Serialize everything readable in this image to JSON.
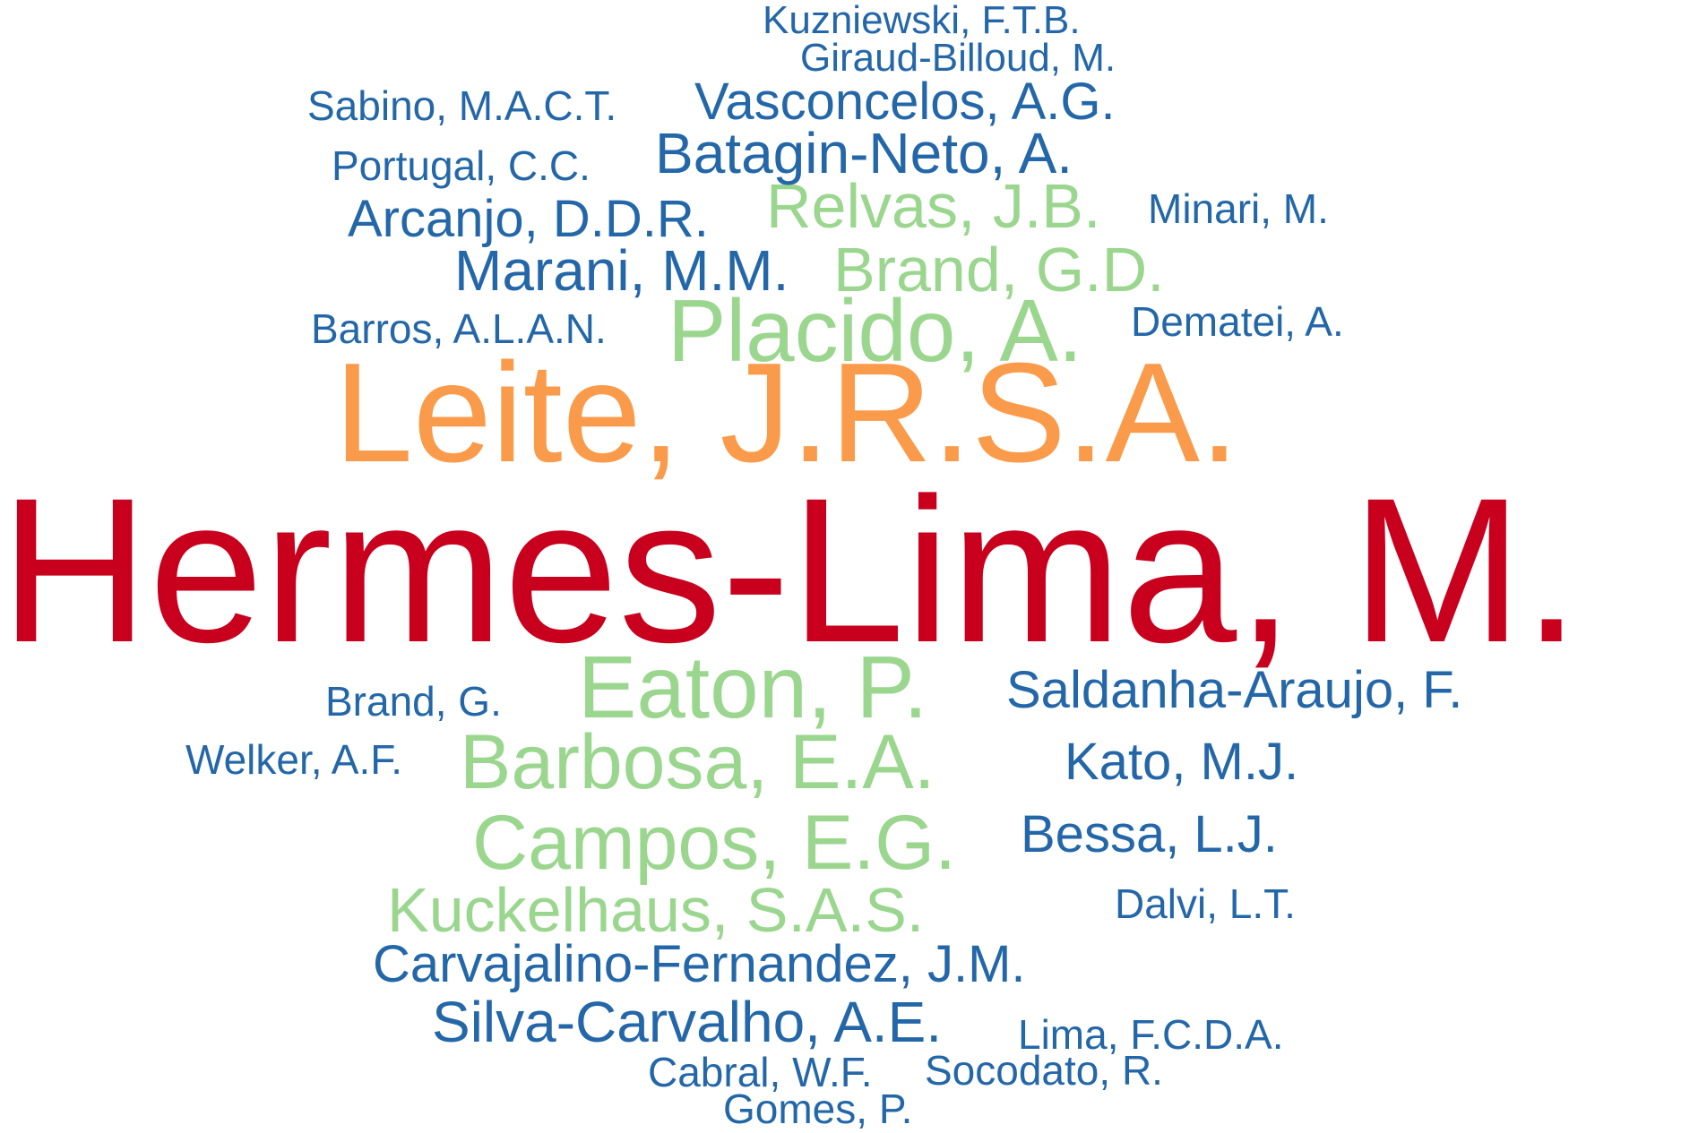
{
  "palette": {
    "tier1": "#c8001e",
    "tier2": "#fa9b4b",
    "tier3": "#9bd68f",
    "tier4": "#2467a8"
  },
  "words": [
    {
      "text": "Hermes-Lima, M.",
      "tier": "tier1"
    },
    {
      "text": "Leite, J.R.S.A.",
      "tier": "tier2"
    },
    {
      "text": "Placido, A.",
      "tier": "tier3"
    },
    {
      "text": "Eaton, P.",
      "tier": "tier3"
    },
    {
      "text": "Barbosa, E.A.",
      "tier": "tier3"
    },
    {
      "text": "Campos, E.G.",
      "tier": "tier3"
    },
    {
      "text": "Kuckelhaus, S.A.S.",
      "tier": "tier3"
    },
    {
      "text": "Relvas, J.B.",
      "tier": "tier3"
    },
    {
      "text": "Brand, G.D.",
      "tier": "tier3"
    },
    {
      "text": "Kuzniewski, F.T.B.",
      "tier": "tier4"
    },
    {
      "text": "Giraud-Billoud, M.",
      "tier": "tier4"
    },
    {
      "text": "Sabino, M.A.C.T.",
      "tier": "tier4"
    },
    {
      "text": "Vasconcelos, A.G.",
      "tier": "tier4"
    },
    {
      "text": "Portugal, C.C.",
      "tier": "tier4"
    },
    {
      "text": "Batagin-Neto, A.",
      "tier": "tier4"
    },
    {
      "text": "Arcanjo, D.D.R.",
      "tier": "tier4"
    },
    {
      "text": "Minari, M.",
      "tier": "tier4"
    },
    {
      "text": "Marani, M.M.",
      "tier": "tier4"
    },
    {
      "text": "Barros, A.L.A.N.",
      "tier": "tier4"
    },
    {
      "text": "Dematei, A.",
      "tier": "tier4"
    },
    {
      "text": "Saldanha-Araujo, F.",
      "tier": "tier4"
    },
    {
      "text": "Brand, G.",
      "tier": "tier4"
    },
    {
      "text": "Welker, A.F.",
      "tier": "tier4"
    },
    {
      "text": "Kato, M.J.",
      "tier": "tier4"
    },
    {
      "text": "Bessa, L.J.",
      "tier": "tier4"
    },
    {
      "text": "Dalvi, L.T.",
      "tier": "tier4"
    },
    {
      "text": "Carvajalino-Fernandez, J.M.",
      "tier": "tier4"
    },
    {
      "text": "Silva-Carvalho, A.E.",
      "tier": "tier4"
    },
    {
      "text": "Lima, F.C.D.A.",
      "tier": "tier4"
    },
    {
      "text": "Cabral, W.F.",
      "tier": "tier4"
    },
    {
      "text": "Socodato, R.",
      "tier": "tier4"
    },
    {
      "text": "Gomes, P.",
      "tier": "tier4"
    }
  ]
}
